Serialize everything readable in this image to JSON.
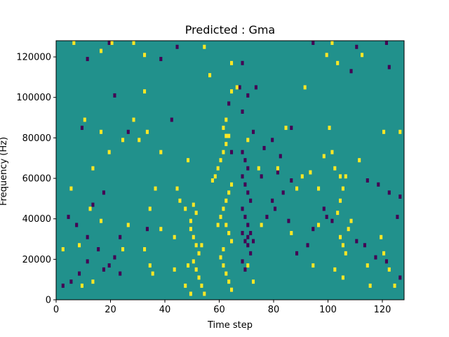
{
  "chart_data": {
    "type": "heatmap",
    "title": "Predicted : Gma",
    "xlabel": "Time step",
    "ylabel": "Frequency (Hz)",
    "xlim": [
      0,
      128
    ],
    "ylim": [
      0,
      128000
    ],
    "xticks": [
      0,
      20,
      40,
      60,
      80,
      100,
      120
    ],
    "yticks": [
      0,
      20000,
      40000,
      60000,
      80000,
      100000,
      120000
    ],
    "grid": false,
    "colors": {
      "background": "#21918c",
      "high": "#fde725",
      "low": "#440154"
    },
    "cell_width": 1,
    "cell_height": 2000,
    "high_cells": [
      [
        6,
        126000
      ],
      [
        20,
        126000
      ],
      [
        28,
        126000
      ],
      [
        54,
        124000
      ],
      [
        101,
        126000
      ],
      [
        16,
        122000
      ],
      [
        32,
        120000
      ],
      [
        99,
        120000
      ],
      [
        112,
        120000
      ],
      [
        64,
        116000
      ],
      [
        103,
        116000
      ],
      [
        56,
        110000
      ],
      [
        91,
        104000
      ],
      [
        32,
        102000
      ],
      [
        64,
        102000
      ],
      [
        66,
        104000
      ],
      [
        10,
        88000
      ],
      [
        28,
        88000
      ],
      [
        84,
        84000
      ],
      [
        100,
        84000
      ],
      [
        120,
        82000
      ],
      [
        126,
        82000
      ],
      [
        16,
        82000
      ],
      [
        33,
        82000
      ],
      [
        24,
        78000
      ],
      [
        30,
        78000
      ],
      [
        62,
        80000
      ],
      [
        70,
        78000
      ],
      [
        19,
        72000
      ],
      [
        38,
        72000
      ],
      [
        101,
        72000
      ],
      [
        98,
        70000
      ],
      [
        111,
        68000
      ],
      [
        13,
        64000
      ],
      [
        48,
        68000
      ],
      [
        74,
        64000
      ],
      [
        81,
        64000
      ],
      [
        90,
        60000
      ],
      [
        93,
        62000
      ],
      [
        102,
        64000
      ],
      [
        5,
        54000
      ],
      [
        36,
        54000
      ],
      [
        44,
        54000
      ],
      [
        57,
        58000
      ],
      [
        88,
        54000
      ],
      [
        96,
        54000
      ],
      [
        12,
        44000
      ],
      [
        34,
        44000
      ],
      [
        47,
        44000
      ],
      [
        45,
        48000
      ],
      [
        49,
        38000
      ],
      [
        16,
        38000
      ],
      [
        26,
        36000
      ],
      [
        38,
        34000
      ],
      [
        43,
        30000
      ],
      [
        75,
        36000
      ],
      [
        86,
        32000
      ],
      [
        96,
        36000
      ],
      [
        2,
        24000
      ],
      [
        8,
        26000
      ],
      [
        24,
        24000
      ],
      [
        32,
        24000
      ],
      [
        53,
        26000
      ],
      [
        34,
        16000
      ],
      [
        43,
        14000
      ],
      [
        48,
        16000
      ],
      [
        70,
        16000
      ],
      [
        94,
        16000
      ],
      [
        102,
        14000
      ],
      [
        114,
        16000
      ],
      [
        9,
        6000
      ],
      [
        13,
        8000
      ],
      [
        35,
        12000
      ],
      [
        47,
        6000
      ],
      [
        72,
        8000
      ],
      [
        105,
        10000
      ],
      [
        115,
        6000
      ],
      [
        59,
        36000
      ],
      [
        60,
        40000
      ],
      [
        61,
        44000
      ],
      [
        62,
        48000
      ],
      [
        63,
        52000
      ],
      [
        64,
        56000
      ],
      [
        58,
        60000
      ],
      [
        59,
        64000
      ],
      [
        60,
        68000
      ],
      [
        61,
        72000
      ],
      [
        62,
        76000
      ],
      [
        63,
        80000
      ],
      [
        61,
        84000
      ],
      [
        62,
        88000
      ],
      [
        62,
        36000
      ],
      [
        63,
        32000
      ],
      [
        64,
        28000
      ],
      [
        61,
        24000
      ],
      [
        60,
        20000
      ],
      [
        61,
        16000
      ],
      [
        62,
        12000
      ],
      [
        63,
        8000
      ],
      [
        64,
        4000
      ],
      [
        50,
        46000
      ],
      [
        51,
        42000
      ],
      [
        49,
        34000
      ],
      [
        50,
        30000
      ],
      [
        51,
        26000
      ],
      [
        52,
        22000
      ],
      [
        50,
        18000
      ],
      [
        51,
        14000
      ],
      [
        52,
        10000
      ],
      [
        53,
        6000
      ],
      [
        54,
        2000
      ],
      [
        49,
        2000
      ],
      [
        104,
        30000
      ],
      [
        105,
        26000
      ],
      [
        106,
        22000
      ],
      [
        107,
        34000
      ],
      [
        108,
        38000
      ],
      [
        103,
        42000
      ],
      [
        104,
        48000
      ],
      [
        105,
        54000
      ],
      [
        106,
        60000
      ],
      [
        104,
        60000
      ],
      [
        119,
        30000
      ],
      [
        120,
        22000
      ],
      [
        122,
        14000
      ],
      [
        124,
        6000
      ]
    ],
    "low_cells": [
      [
        19,
        126000
      ],
      [
        44,
        124000
      ],
      [
        94,
        126000
      ],
      [
        110,
        124000
      ],
      [
        121,
        126000
      ],
      [
        11,
        118000
      ],
      [
        38,
        118000
      ],
      [
        68,
        116000
      ],
      [
        108,
        112000
      ],
      [
        122,
        114000
      ],
      [
        21,
        100000
      ],
      [
        70,
        100000
      ],
      [
        68,
        92000
      ],
      [
        72,
        82000
      ],
      [
        86,
        84000
      ],
      [
        9,
        84000
      ],
      [
        26,
        82000
      ],
      [
        42,
        88000
      ],
      [
        64,
        72000
      ],
      [
        68,
        72000
      ],
      [
        69,
        68000
      ],
      [
        70,
        64000
      ],
      [
        68,
        60000
      ],
      [
        69,
        56000
      ],
      [
        70,
        52000
      ],
      [
        71,
        48000
      ],
      [
        68,
        44000
      ],
      [
        69,
        40000
      ],
      [
        70,
        36000
      ],
      [
        68,
        32000
      ],
      [
        69,
        28000
      ],
      [
        70,
        26000
      ],
      [
        71,
        22000
      ],
      [
        68,
        18000
      ],
      [
        69,
        14000
      ],
      [
        70,
        30000
      ],
      [
        71,
        32000
      ],
      [
        72,
        28000
      ],
      [
        75,
        60000
      ],
      [
        81,
        62000
      ],
      [
        86,
        58000
      ],
      [
        83,
        52000
      ],
      [
        79,
        48000
      ],
      [
        77,
        40000
      ],
      [
        80,
        44000
      ],
      [
        85,
        38000
      ],
      [
        94,
        34000
      ],
      [
        92,
        26000
      ],
      [
        88,
        22000
      ],
      [
        99,
        40000
      ],
      [
        98,
        44000
      ],
      [
        101,
        38000
      ],
      [
        114,
        58000
      ],
      [
        118,
        56000
      ],
      [
        122,
        52000
      ],
      [
        126,
        50000
      ],
      [
        125,
        40000
      ],
      [
        110,
        28000
      ],
      [
        113,
        26000
      ],
      [
        117,
        20000
      ],
      [
        121,
        18000
      ],
      [
        126,
        10000
      ],
      [
        17,
        14000
      ],
      [
        21,
        20000
      ],
      [
        23,
        30000
      ],
      [
        33,
        34000
      ],
      [
        13,
        46000
      ],
      [
        17,
        52000
      ],
      [
        4,
        40000
      ],
      [
        7,
        36000
      ],
      [
        11,
        30000
      ],
      [
        15,
        24000
      ],
      [
        19,
        16000
      ],
      [
        23,
        12000
      ],
      [
        2,
        6000
      ],
      [
        5,
        8000
      ],
      [
        8,
        12000
      ],
      [
        11,
        18000
      ],
      [
        63,
        96000
      ],
      [
        67,
        104000
      ],
      [
        73,
        104000
      ],
      [
        76,
        74000
      ],
      [
        79,
        78000
      ],
      [
        82,
        70000
      ]
    ]
  }
}
